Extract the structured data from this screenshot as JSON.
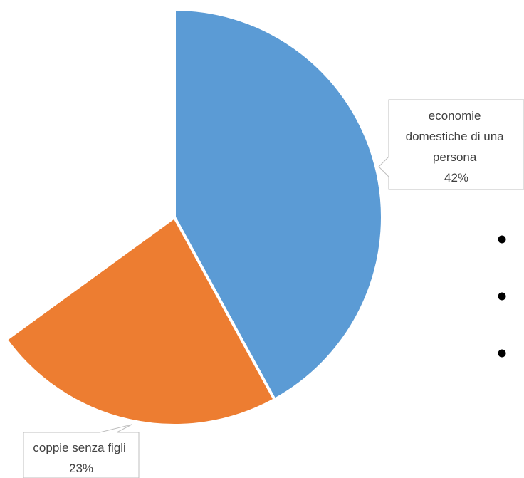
{
  "chart_data": {
    "type": "pie",
    "slices": [
      {
        "category_lines": [
          "economie",
          "domestiche di una",
          "persona"
        ],
        "percent_label": "42%",
        "value": 42,
        "color": "#5b9bd5"
      },
      {
        "category_lines": [
          "coppie senza figli"
        ],
        "percent_label": "23%",
        "value": 23,
        "color": "#ed7d31"
      }
    ],
    "start_angle_degrees": 0,
    "direction": "clockwise",
    "legend_markers": 3,
    "legend_marker_color": "#000000"
  }
}
